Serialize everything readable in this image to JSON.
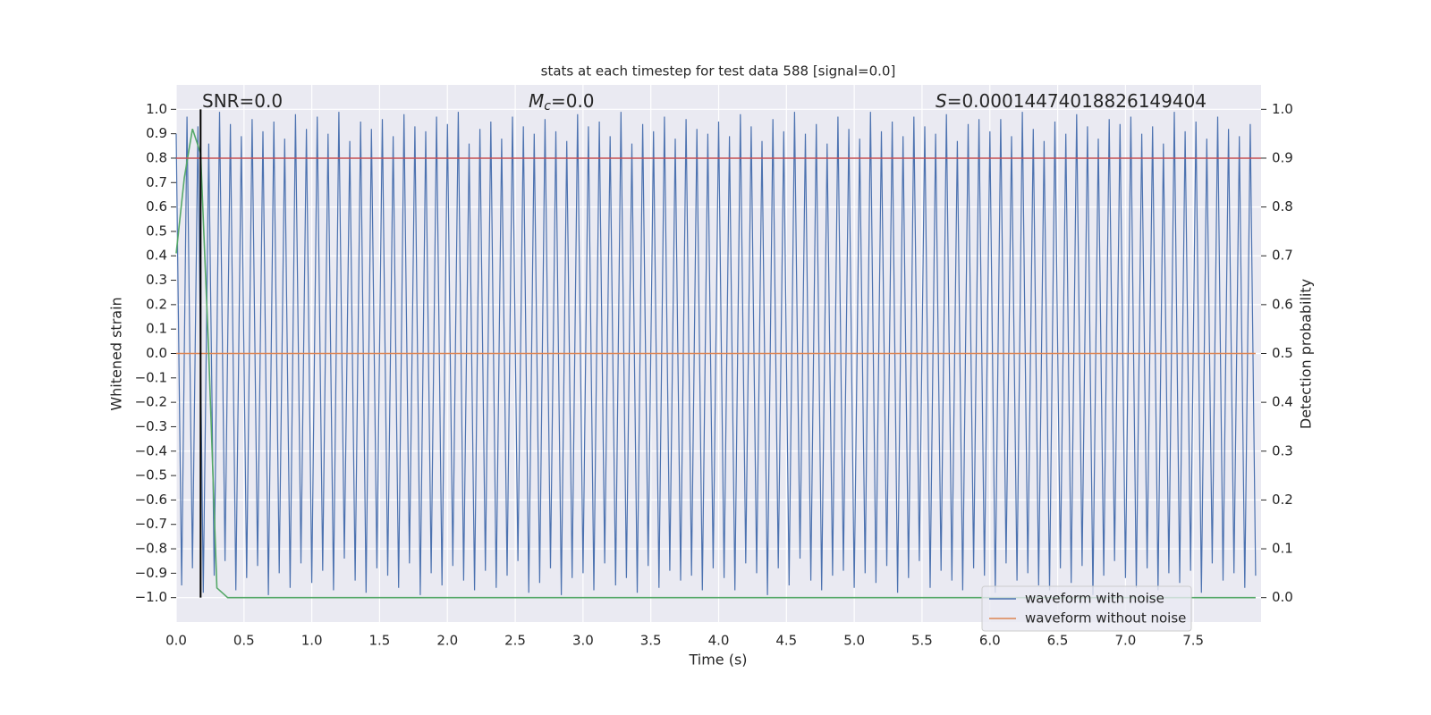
{
  "chart_data": {
    "type": "line",
    "title": "stats at each timestep for test data 588 [signal=0.0]",
    "xlabel": "Time (s)",
    "ylabel": "Whitened strain",
    "y2label": "Detection probability",
    "annotations": [
      {
        "text": "SNR=0.0"
      },
      {
        "symbol": "M",
        "subscript": "c",
        "text": "=0.0"
      },
      {
        "symbol": "S",
        "text": "=0.00014474018826149404"
      }
    ],
    "xlim": [
      0,
      8
    ],
    "ylim": [
      -1.1,
      1.1
    ],
    "y2lim": [
      -0.05,
      1.05
    ],
    "grid": true,
    "legend": "lower right",
    "xticks": [
      {
        "value": 0,
        "label": "0.0"
      },
      {
        "value": 0.5,
        "label": "0.5"
      },
      {
        "value": 1,
        "label": "1.0"
      },
      {
        "value": 1.5,
        "label": "1.5"
      },
      {
        "value": 2,
        "label": "2.0"
      },
      {
        "value": 2.5,
        "label": "2.5"
      },
      {
        "value": 3,
        "label": "3.0"
      },
      {
        "value": 3.5,
        "label": "3.5"
      },
      {
        "value": 4,
        "label": "4.0"
      },
      {
        "value": 4.5,
        "label": "4.5"
      },
      {
        "value": 5,
        "label": "5.0"
      },
      {
        "value": 5.5,
        "label": "5.5"
      },
      {
        "value": 6,
        "label": "6.0"
      },
      {
        "value": 6.5,
        "label": "6.5"
      },
      {
        "value": 7,
        "label": "7.0"
      },
      {
        "value": 7.5,
        "label": "7.5"
      }
    ],
    "yticks": [
      {
        "value": 1,
        "label": "1.0"
      },
      {
        "value": 0.9,
        "label": "0.9"
      },
      {
        "value": 0.8,
        "label": "0.8"
      },
      {
        "value": 0.7,
        "label": "0.7"
      },
      {
        "value": 0.6,
        "label": "0.6"
      },
      {
        "value": 0.5,
        "label": "0.5"
      },
      {
        "value": 0.4,
        "label": "0.4"
      },
      {
        "value": 0.3,
        "label": "0.3"
      },
      {
        "value": 0.2,
        "label": "0.2"
      },
      {
        "value": 0.1,
        "label": "0.1"
      },
      {
        "value": 0,
        "label": "0.0"
      },
      {
        "value": -0.1,
        "label": "−0.1"
      },
      {
        "value": -0.2,
        "label": "−0.2"
      },
      {
        "value": -0.3,
        "label": "−0.3"
      },
      {
        "value": -0.4,
        "label": "−0.4"
      },
      {
        "value": -0.5,
        "label": "−0.5"
      },
      {
        "value": -0.6,
        "label": "−0.6"
      },
      {
        "value": -0.7,
        "label": "−0.7"
      },
      {
        "value": -0.8,
        "label": "−0.8"
      },
      {
        "value": -0.9,
        "label": "−0.9"
      },
      {
        "value": -1,
        "label": "−1.0"
      }
    ],
    "y2ticks": [
      {
        "value": 1,
        "label": "1.0"
      },
      {
        "value": 0.9,
        "label": "0.9"
      },
      {
        "value": 0.8,
        "label": "0.8"
      },
      {
        "value": 0.7,
        "label": "0.7"
      },
      {
        "value": 0.6,
        "label": "0.6"
      },
      {
        "value": 0.5,
        "label": "0.5"
      },
      {
        "value": 0.4,
        "label": "0.4"
      },
      {
        "value": 0.3,
        "label": "0.3"
      },
      {
        "value": 0.2,
        "label": "0.2"
      },
      {
        "value": 0.1,
        "label": "0.1"
      },
      {
        "value": 0,
        "label": "0.0"
      }
    ],
    "series": [
      {
        "name": "waveform with noise",
        "color": "#4c72b0",
        "x": [
          0,
          0.04,
          0.08,
          0.12,
          0.16,
          0.2,
          0.24,
          0.28,
          0.32,
          0.36,
          0.4,
          0.44,
          0.48,
          0.52,
          0.56,
          0.6,
          0.64,
          0.68,
          0.72,
          0.76,
          0.8,
          0.84,
          0.88,
          0.92,
          0.96,
          1,
          1.04,
          1.08,
          1.12,
          1.16,
          1.2,
          1.24,
          1.28,
          1.32,
          1.36,
          1.4,
          1.44,
          1.48,
          1.52,
          1.56,
          1.6,
          1.64,
          1.68,
          1.72,
          1.76,
          1.8,
          1.84,
          1.88,
          1.92,
          1.96,
          2,
          2.04,
          2.08,
          2.12,
          2.16,
          2.2,
          2.24,
          2.28,
          2.32,
          2.36,
          2.4,
          2.44,
          2.48,
          2.52,
          2.56,
          2.6,
          2.64,
          2.68,
          2.72,
          2.76,
          2.8,
          2.84,
          2.88,
          2.92,
          2.96,
          3,
          3.04,
          3.08,
          3.12,
          3.16,
          3.2,
          3.24,
          3.28,
          3.32,
          3.36,
          3.4,
          3.44,
          3.48,
          3.52,
          3.56,
          3.6,
          3.64,
          3.68,
          3.72,
          3.76,
          3.8,
          3.84,
          3.88,
          3.92,
          3.96,
          4,
          4.04,
          4.08,
          4.12,
          4.16,
          4.2,
          4.24,
          4.28,
          4.32,
          4.36,
          4.4,
          4.44,
          4.48,
          4.52,
          4.56,
          4.6,
          4.64,
          4.68,
          4.72,
          4.76,
          4.8,
          4.84,
          4.88,
          4.92,
          4.96,
          5,
          5.04,
          5.08,
          5.12,
          5.16,
          5.2,
          5.24,
          5.28,
          5.32,
          5.36,
          5.4,
          5.44,
          5.48,
          5.52,
          5.56,
          5.6,
          5.64,
          5.68,
          5.72,
          5.76,
          5.8,
          5.84,
          5.88,
          5.92,
          5.96,
          6,
          6.04,
          6.08,
          6.12,
          6.16,
          6.2,
          6.24,
          6.28,
          6.32,
          6.36,
          6.4,
          6.44,
          6.48,
          6.52,
          6.56,
          6.6,
          6.64,
          6.68,
          6.72,
          6.76,
          6.8,
          6.84,
          6.88,
          6.92,
          6.96,
          7,
          7.04,
          7.08,
          7.12,
          7.16,
          7.2,
          7.24,
          7.28,
          7.32,
          7.36,
          7.4,
          7.44,
          7.48,
          7.52,
          7.56,
          7.6,
          7.64,
          7.68,
          7.72,
          7.76,
          7.8,
          7.84,
          7.88,
          7.92,
          7.96
        ],
        "values": [
          0.9,
          -0.95,
          0.97,
          -0.88,
          0.93,
          -0.98,
          0.86,
          -0.91,
          0.99,
          -0.85,
          0.94,
          -0.97,
          0.89,
          -0.92,
          0.96,
          -0.87,
          0.91,
          -0.99,
          0.95,
          -0.9,
          0.88,
          -0.96,
          0.98,
          -0.86,
          0.92,
          -0.94,
          0.97,
          -0.89,
          0.9,
          -0.97,
          0.99,
          -0.84,
          0.87,
          -0.93,
          0.95,
          -0.98,
          0.92,
          -0.88,
          0.96,
          -0.91,
          0.89,
          -0.96,
          0.98,
          -0.86,
          0.93,
          -0.99,
          0.91,
          -0.9,
          0.97,
          -0.95,
          0.94,
          -0.87,
          0.99,
          -0.93,
          0.86,
          -0.97,
          0.92,
          -0.89,
          0.95,
          -0.96,
          0.88,
          -0.91,
          0.97,
          -0.85,
          0.93,
          -0.98,
          0.9,
          -0.94,
          0.96,
          -0.88,
          0.91,
          -0.99,
          0.87,
          -0.92,
          0.98,
          -0.9,
          0.93,
          -0.97,
          0.95,
          -0.86,
          0.89,
          -0.95,
          0.99,
          -0.92,
          0.86,
          -0.98,
          0.94,
          -0.87,
          0.91,
          -0.96,
          0.97,
          -0.89,
          0.88,
          -0.93,
          0.96,
          -0.91,
          0.92,
          -0.97,
          0.9,
          -0.88,
          0.95,
          -0.92,
          0.89,
          -0.97,
          0.98,
          -0.86,
          0.93,
          -0.9,
          0.87,
          -0.99,
          0.96,
          -0.88,
          0.91,
          -0.95,
          0.99,
          -0.84,
          0.9,
          -0.93,
          0.94,
          -0.97,
          0.86,
          -0.91,
          0.97,
          -0.89,
          0.92,
          -0.96,
          0.88,
          -0.9,
          0.99,
          -0.94,
          0.91,
          -0.87,
          0.95,
          -0.98,
          0.89,
          -0.92,
          0.97,
          -0.85,
          0.93,
          -0.96,
          0.9,
          -0.89,
          0.98,
          -0.93,
          0.87,
          -0.97,
          0.94,
          -0.88,
          0.96,
          -0.91,
          0.91,
          -0.98,
          0.96,
          -0.86,
          0.89,
          -0.93,
          0.99,
          -0.9,
          0.92,
          -0.95,
          0.87,
          -0.97,
          0.95,
          -0.88,
          0.9,
          -0.94,
          0.98,
          -0.87,
          0.93,
          -0.99,
          0.88,
          -0.91,
          0.96,
          -0.85,
          0.94,
          -0.92,
          0.97,
          -0.96,
          0.9,
          -0.88,
          0.93,
          -0.97,
          0.86,
          -0.9,
          0.99,
          -0.94,
          0.91,
          -0.89,
          0.95,
          -0.98,
          0.88,
          -0.86,
          0.97,
          -0.93,
          0.92,
          -0.9,
          0.89,
          -0.96,
          0.94,
          -0.91
        ]
      },
      {
        "name": "waveform without noise",
        "color": "#dd8452",
        "x": [
          0,
          7.96
        ],
        "values": [
          0,
          0
        ]
      },
      {
        "color": "#55a868",
        "axis": "y2",
        "x": [
          0,
          0.06,
          0.12,
          0.18,
          0.24,
          0.3,
          0.38,
          7.96
        ],
        "values": [
          0.705,
          0.86,
          0.96,
          0.91,
          0.5,
          0.02,
          0,
          0
        ]
      }
    ],
    "threshold": {
      "value": 0.9,
      "axis": "y2",
      "color": "#c44e52"
    },
    "vline": {
      "value": 0.18,
      "ymin": -1,
      "ymax": 1,
      "color": "#000000"
    }
  }
}
